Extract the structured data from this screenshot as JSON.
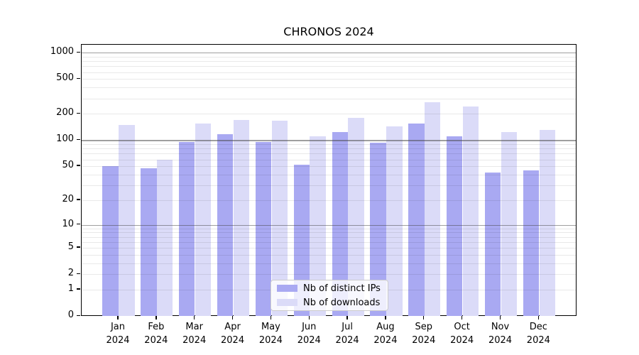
{
  "title": "CHRONOS 2024",
  "chart_data": {
    "type": "bar",
    "title": "CHRONOS 2024",
    "categories": [
      "Jan 2024",
      "Feb 2024",
      "Mar 2024",
      "Apr 2024",
      "May 2024",
      "Jun 2024",
      "Jul 2024",
      "Aug 2024",
      "Sep 2024",
      "Oct 2024",
      "Nov 2024",
      "Dec 2024"
    ],
    "series": [
      {
        "name": "Nb of distinct IPs",
        "color": "#a9a9f2",
        "values": [
          50,
          47,
          95,
          117,
          96,
          52,
          125,
          94,
          154,
          110,
          42,
          45
        ]
      },
      {
        "name": "Nb of downloads",
        "color": "#dbdbf8",
        "values": [
          150,
          59,
          154,
          172,
          166,
          111,
          180,
          143,
          272,
          242,
          124,
          130
        ]
      }
    ],
    "yscale": "log1p",
    "y_tick_labels": [
      "0",
      "1",
      "2",
      "5",
      "10",
      "20",
      "50",
      "100",
      "200",
      "500",
      "1000"
    ],
    "y_tick_values": [
      0,
      1,
      2,
      5,
      10,
      20,
      50,
      100,
      200,
      500,
      1000
    ],
    "ylim": [
      0,
      1230
    ],
    "grid": true,
    "legend_position": "lower center"
  },
  "legend": {
    "items": [
      {
        "label": "Nb of distinct IPs",
        "color": "#a9a9f2"
      },
      {
        "label": "Nb of downloads",
        "color": "#dbdbf8"
      }
    ]
  },
  "colors": {
    "background": "#ffffff",
    "bar_ips": "#a9a9f2",
    "bar_downloads": "#dbdbf8",
    "grid_major": "#b0b0b0",
    "grid_minor": "#ebebeb",
    "axis": "#000000"
  }
}
